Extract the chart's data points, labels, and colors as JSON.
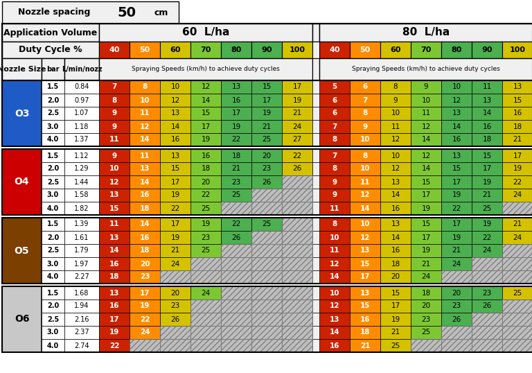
{
  "title_spacing": "Nozzle spacing",
  "title_spacing_val": "50",
  "title_spacing_unit": "cm",
  "app_vol_label": "Application Volume",
  "duty_cycle_label": "Duty Cycle %",
  "nozzle_size_label": "Nozzle Size",
  "bar_label": "bar",
  "lmin_label": "L/min/nozz",
  "speed_label_60": "Spraying Speeds (km/h) to achieve duty cycles",
  "speed_label_80": "Spraying Speeds (km/h) to achieve duty cycles",
  "vol60_label": "60  L/ha",
  "vol80_label": "80  L/ha",
  "duty_cycles": [
    40,
    50,
    60,
    70,
    80,
    90,
    100
  ],
  "nozzle_groups": [
    "O3",
    "O4",
    "O5",
    "O6"
  ],
  "group_colors": [
    "#1E5BC6",
    "#CC0000",
    "#7B3F00",
    "#C8C8C8"
  ],
  "pressures": [
    1.5,
    2.0,
    2.5,
    3.0,
    4.0
  ],
  "lmin_values": {
    "O3": [
      0.84,
      0.97,
      1.07,
      1.18,
      1.37
    ],
    "O4": [
      1.12,
      1.29,
      1.44,
      1.58,
      1.82
    ],
    "O5": [
      1.39,
      1.61,
      1.79,
      1.97,
      2.27
    ],
    "O6": [
      1.68,
      1.94,
      2.16,
      2.37,
      2.74
    ]
  },
  "data_60": {
    "O3": [
      [
        7,
        8,
        10,
        12,
        13,
        15,
        17
      ],
      [
        8,
        10,
        12,
        14,
        16,
        17,
        19
      ],
      [
        9,
        11,
        13,
        15,
        17,
        19,
        21
      ],
      [
        9,
        12,
        14,
        17,
        19,
        21,
        24
      ],
      [
        11,
        14,
        16,
        19,
        22,
        25,
        27
      ]
    ],
    "O4": [
      [
        9,
        11,
        13,
        16,
        18,
        20,
        22
      ],
      [
        10,
        13,
        15,
        18,
        21,
        23,
        26
      ],
      [
        12,
        14,
        17,
        20,
        23,
        26,
        null
      ],
      [
        13,
        16,
        19,
        22,
        25,
        null,
        null
      ],
      [
        15,
        18,
        22,
        25,
        null,
        null,
        null
      ]
    ],
    "O5": [
      [
        11,
        14,
        17,
        19,
        22,
        25,
        null
      ],
      [
        13,
        16,
        19,
        23,
        26,
        null,
        null
      ],
      [
        14,
        18,
        21,
        25,
        null,
        null,
        null
      ],
      [
        16,
        20,
        24,
        null,
        null,
        null,
        null
      ],
      [
        18,
        23,
        null,
        null,
        null,
        null,
        null
      ]
    ],
    "O6": [
      [
        13,
        17,
        20,
        24,
        null,
        null,
        null
      ],
      [
        16,
        19,
        23,
        null,
        null,
        null,
        null
      ],
      [
        17,
        22,
        26,
        null,
        null,
        null,
        null
      ],
      [
        19,
        24,
        null,
        null,
        null,
        null,
        null
      ],
      [
        22,
        null,
        null,
        null,
        null,
        null,
        null
      ]
    ]
  },
  "data_80": {
    "O3": [
      [
        5,
        6,
        8,
        9,
        10,
        11,
        13
      ],
      [
        6,
        7,
        9,
        10,
        12,
        13,
        15
      ],
      [
        6,
        8,
        10,
        11,
        13,
        14,
        16
      ],
      [
        7,
        9,
        11,
        12,
        14,
        16,
        18
      ],
      [
        8,
        10,
        12,
        14,
        16,
        18,
        21
      ]
    ],
    "O4": [
      [
        7,
        8,
        10,
        12,
        13,
        15,
        17
      ],
      [
        8,
        10,
        12,
        14,
        15,
        17,
        19
      ],
      [
        9,
        11,
        13,
        15,
        17,
        19,
        22
      ],
      [
        9,
        12,
        14,
        17,
        19,
        21,
        24
      ],
      [
        11,
        14,
        16,
        19,
        22,
        25,
        null
      ]
    ],
    "O5": [
      [
        8,
        10,
        13,
        15,
        17,
        19,
        21
      ],
      [
        10,
        12,
        14,
        17,
        19,
        22,
        24
      ],
      [
        11,
        13,
        16,
        19,
        21,
        24,
        null
      ],
      [
        12,
        15,
        18,
        21,
        24,
        null,
        null
      ],
      [
        14,
        17,
        20,
        24,
        null,
        null,
        null
      ]
    ],
    "O6": [
      [
        10,
        13,
        15,
        18,
        20,
        23,
        25
      ],
      [
        12,
        15,
        17,
        20,
        23,
        26,
        null
      ],
      [
        13,
        16,
        19,
        23,
        26,
        null,
        null
      ],
      [
        14,
        18,
        21,
        25,
        null,
        null,
        null
      ],
      [
        16,
        21,
        25,
        null,
        null,
        null,
        null
      ]
    ]
  },
  "dc_colors": [
    "#CC2200",
    "#FF8C00",
    "#D4C200",
    "#7DC832",
    "#4CAF50",
    "#4CAF50",
    "#D4C200"
  ],
  "dc_text_colors": [
    "white",
    "white",
    "black",
    "black",
    "black",
    "black",
    "black"
  ],
  "cell_bold": [
    true,
    true,
    false,
    false,
    false,
    false,
    false
  ]
}
